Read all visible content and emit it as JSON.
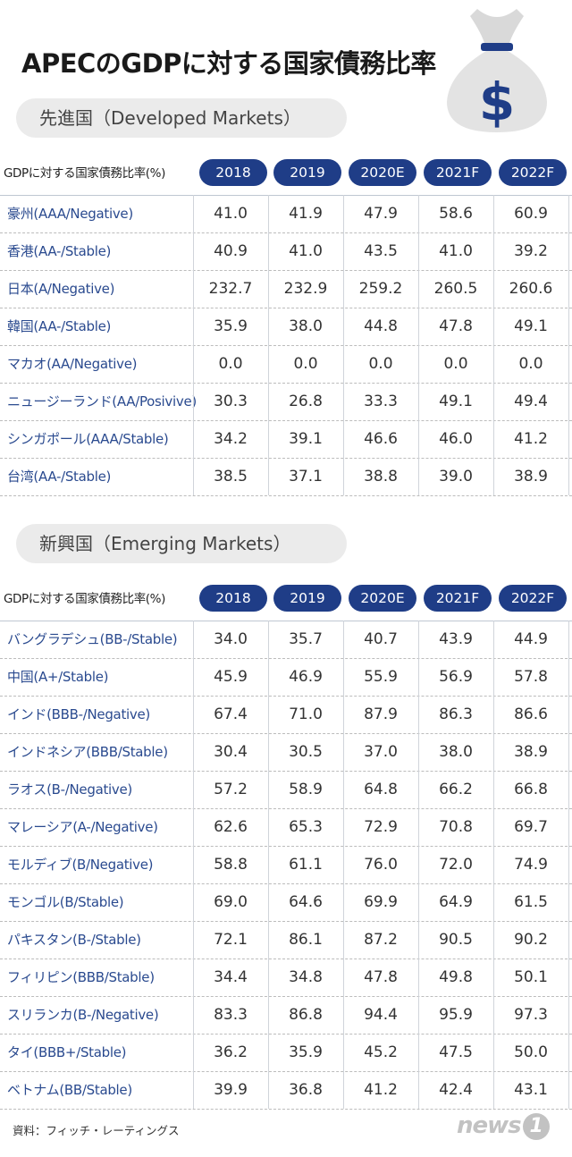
{
  "title": "APECのGDPに対する国家債務比率",
  "icon": "money-bag-dollar-icon",
  "accent_color": "#1f3d87",
  "source": "資料：フィッチ・レーティングス",
  "logo_text": "news",
  "logo_badge": "1",
  "chart_data": [
    {
      "type": "table",
      "title": "先進国（Developed Markets）",
      "row_header": "GDPに対する国家債務比率(%)",
      "columns": [
        "2018",
        "2019",
        "2020E",
        "2021F",
        "2022F"
      ],
      "rows": [
        {
          "name": "豪州(AAA/Negative)",
          "values": [
            "41.0",
            "41.9",
            "47.9",
            "58.6",
            "60.9"
          ]
        },
        {
          "name": "香港(AA-/Stable)",
          "values": [
            "40.9",
            "41.0",
            "43.5",
            "41.0",
            "39.2"
          ]
        },
        {
          "name": "日本(A/Negative)",
          "values": [
            "232.7",
            "232.9",
            "259.2",
            "260.5",
            "260.6"
          ]
        },
        {
          "name": "韓国(AA-/Stable)",
          "values": [
            "35.9",
            "38.0",
            "44.8",
            "47.8",
            "49.1"
          ]
        },
        {
          "name": "マカオ(AA/Negative)",
          "values": [
            "0.0",
            "0.0",
            "0.0",
            "0.0",
            "0.0"
          ]
        },
        {
          "name": "ニュージーランド(AA/Posivive)",
          "values": [
            "30.3",
            "26.8",
            "33.3",
            "49.1",
            "49.4"
          ]
        },
        {
          "name": "シンガポール(AAA/Stable)",
          "values": [
            "34.2",
            "39.1",
            "46.6",
            "46.0",
            "41.2"
          ]
        },
        {
          "name": "台湾(AA-/Stable)",
          "values": [
            "38.5",
            "37.1",
            "38.8",
            "39.0",
            "38.9"
          ]
        }
      ]
    },
    {
      "type": "table",
      "title": "新興国（Emerging Markets）",
      "row_header": "GDPに対する国家債務比率(%)",
      "columns": [
        "2018",
        "2019",
        "2020E",
        "2021F",
        "2022F"
      ],
      "rows": [
        {
          "name": "バングラデシュ(BB-/Stable)",
          "values": [
            "34.0",
            "35.7",
            "40.7",
            "43.9",
            "44.9"
          ]
        },
        {
          "name": "中国(A+/Stable)",
          "values": [
            "45.9",
            "46.9",
            "55.9",
            "56.9",
            "57.8"
          ]
        },
        {
          "name": "インド(BBB-/Negative)",
          "values": [
            "67.4",
            "71.0",
            "87.9",
            "86.3",
            "86.6"
          ]
        },
        {
          "name": "インドネシア(BBB/Stable)",
          "values": [
            "30.4",
            "30.5",
            "37.0",
            "38.0",
            "38.9"
          ]
        },
        {
          "name": "ラオス(B-/Negative)",
          "values": [
            "57.2",
            "58.9",
            "64.8",
            "66.2",
            "66.8"
          ]
        },
        {
          "name": "マレーシア(A-/Negative)",
          "values": [
            "62.6",
            "65.3",
            "72.9",
            "70.8",
            "69.7"
          ]
        },
        {
          "name": "モルディブ(B/Negative)",
          "values": [
            "58.8",
            "61.1",
            "76.0",
            "72.0",
            "74.9"
          ]
        },
        {
          "name": "モンゴル(B/Stable)",
          "values": [
            "69.0",
            "64.6",
            "69.9",
            "64.9",
            "61.5"
          ]
        },
        {
          "name": "パキスタン(B-/Stable)",
          "values": [
            "72.1",
            "86.1",
            "87.2",
            "90.5",
            "90.2"
          ]
        },
        {
          "name": "フィリピン(BBB/Stable)",
          "values": [
            "34.4",
            "34.8",
            "47.8",
            "49.8",
            "50.1"
          ]
        },
        {
          "name": "スリランカ(B-/Negative)",
          "values": [
            "83.3",
            "86.8",
            "94.4",
            "95.9",
            "97.3"
          ]
        },
        {
          "name": "タイ(BBB+/Stable)",
          "values": [
            "36.2",
            "35.9",
            "45.2",
            "47.5",
            "50.0"
          ]
        },
        {
          "name": "ベトナム(BB/Stable)",
          "values": [
            "39.9",
            "36.8",
            "41.2",
            "42.4",
            "43.1"
          ]
        }
      ]
    }
  ]
}
